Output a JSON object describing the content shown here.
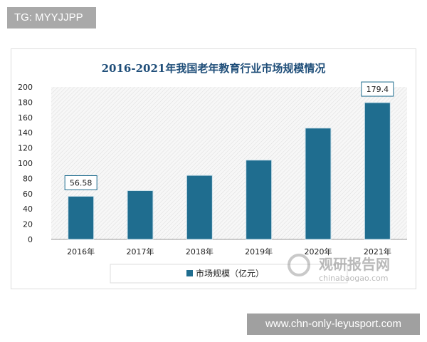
{
  "watermark_top": "TG: MYYJJPP",
  "watermark_bottom": "www.chn-only-leyusport.com",
  "logo": {
    "cn": "观研报告网",
    "en": "chinabaogao.com"
  },
  "colors": {
    "bar": "#1f6d8f",
    "title": "#1f4e79"
  },
  "chart_data": {
    "type": "bar",
    "title": "2016-2021年我国老年教育行业市场规模情况",
    "categories": [
      "2016年",
      "2017年",
      "2018年",
      "2019年",
      "2020年",
      "2021年"
    ],
    "series": [
      {
        "name": "市场规模（亿元）",
        "values": [
          56.58,
          64,
          84,
          104,
          146,
          179.4
        ]
      }
    ],
    "data_labels": {
      "0": "56.58",
      "5": "179.4"
    },
    "yticks": [
      "0",
      "20",
      "40",
      "60",
      "80",
      "100",
      "120",
      "140",
      "160",
      "180",
      "200"
    ],
    "ylim": [
      0,
      200
    ],
    "legend": "bottom",
    "grid": false
  }
}
